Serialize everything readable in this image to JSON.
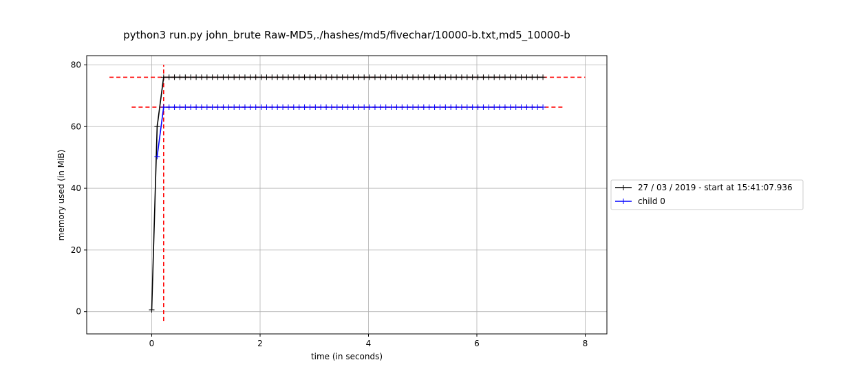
{
  "chart_data": {
    "type": "line",
    "title": "python3 run.py john_brute Raw-MD5,./hashes/md5/fivechar/10000-b.txt,md5_10000-b",
    "xlabel": "time (in seconds)",
    "ylabel": "memory used (in MiB)",
    "xlim": [
      -1.2,
      8.4
    ],
    "ylim": [
      -7.2,
      83.0
    ],
    "xticks": [
      0,
      2,
      4,
      6,
      8
    ],
    "yticks": [
      0,
      20,
      40,
      60,
      80
    ],
    "grid": true,
    "legend_position": "right-outside",
    "series": [
      {
        "name": "27 / 03 / 2019 - start at 15:41:07.936",
        "color": "#000000",
        "marker": "+",
        "x_start": 0,
        "x_step": 0.1,
        "points": [
          [
            0.0,
            0.6
          ],
          [
            0.1,
            60.0
          ],
          [
            0.22,
            76.0
          ]
        ],
        "plateau": {
          "y": 76.0,
          "x_from": 0.22,
          "x_to": 7.25,
          "step": 0.1
        }
      },
      {
        "name": "child 0",
        "color": "#0000ff",
        "marker": "+",
        "points": [
          [
            0.1,
            50.3
          ],
          [
            0.22,
            66.3
          ]
        ],
        "plateau": {
          "y": 66.3,
          "x_from": 0.22,
          "x_to": 7.25,
          "step": 0.1
        }
      }
    ],
    "reference_lines": [
      {
        "orientation": "horizontal",
        "y": 76.0,
        "x_from": -0.78,
        "x_to": 8.0,
        "color": "#ff0000",
        "style": "dashed"
      },
      {
        "orientation": "horizontal",
        "y": 66.3,
        "x_from": -0.37,
        "x_to": 7.6,
        "color": "#ff0000",
        "style": "dashed"
      },
      {
        "orientation": "vertical",
        "x": 0.22,
        "y_from": -3.0,
        "y_to": 80.0,
        "color": "#ff0000",
        "style": "dashed"
      }
    ]
  }
}
